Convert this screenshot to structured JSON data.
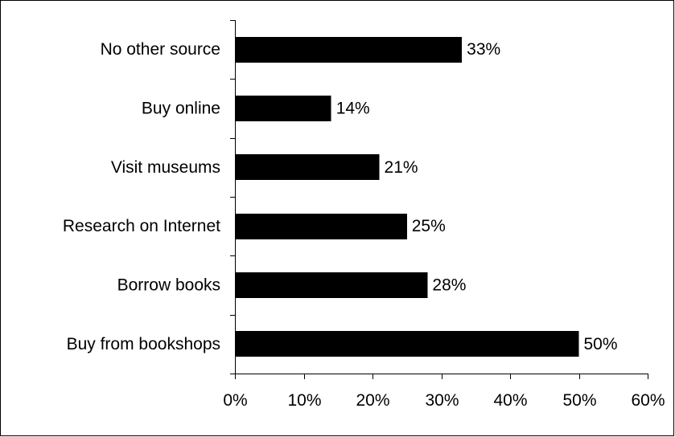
{
  "chart_data": {
    "type": "bar",
    "orientation": "horizontal",
    "title": "",
    "xlabel": "",
    "ylabel": "",
    "categories": [
      "No other source",
      "Buy online",
      "Visit museums",
      "Research on Internet",
      "Borrow books",
      "Buy from bookshops"
    ],
    "values": [
      33,
      14,
      21,
      25,
      28,
      50
    ],
    "data_labels": [
      "33%",
      "14%",
      "21%",
      "25%",
      "28%",
      "50%"
    ],
    "xlim": [
      0,
      60
    ],
    "x_ticks": [
      0,
      10,
      20,
      30,
      40,
      50,
      60
    ],
    "x_tick_labels": [
      "0%",
      "10%",
      "20%",
      "30%",
      "40%",
      "50%",
      "60%"
    ],
    "grid": false,
    "legend": "none",
    "bar_color": "#000000"
  }
}
